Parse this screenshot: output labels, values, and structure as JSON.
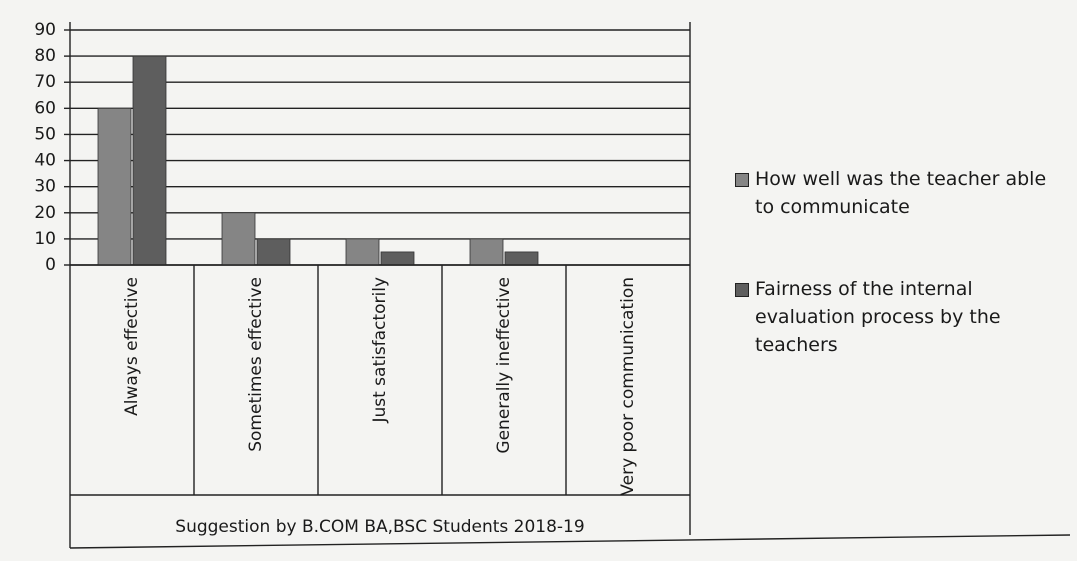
{
  "chart_data": {
    "type": "bar",
    "x_label": "Suggestion by B.COM BA,BSC Students 2018-19",
    "categories": [
      "Always effective",
      "Sometimes effective",
      "Just satisfactorily",
      "Generally ineffective",
      "Very poor communication"
    ],
    "series": [
      {
        "name": "How well was the teacher able to communicate",
        "color": "#858585",
        "values": [
          60,
          20,
          10,
          10,
          0
        ]
      },
      {
        "name": "Fairness of the internal evaluation process by the teachers",
        "color": "#5e5e5e",
        "values": [
          80,
          10,
          5,
          5,
          0
        ]
      }
    ],
    "ylim": [
      0,
      90
    ],
    "yticks": [
      0,
      10,
      20,
      30,
      40,
      50,
      60,
      70,
      80,
      90
    ],
    "grid": true,
    "legend": "right"
  }
}
